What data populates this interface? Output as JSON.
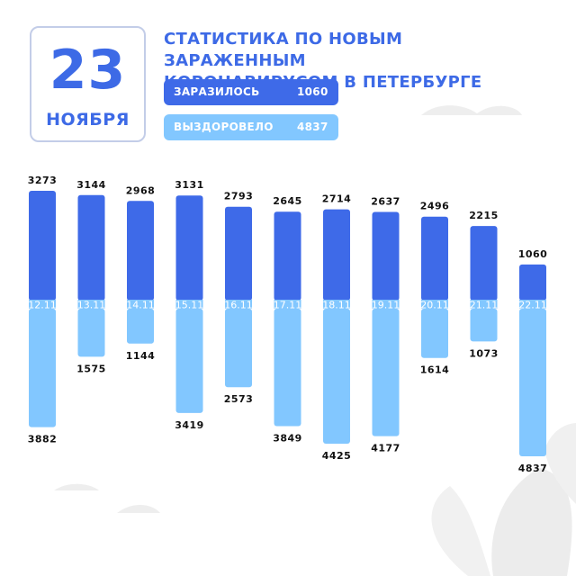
{
  "header": {
    "day": "23",
    "month": "НОЯБРЯ",
    "title_line1": "СТАТИСТИКА ПО НОВЫМ ЗАРАЖЕННЫМ",
    "title_line2": "КОРОНАВИРУСОМ В ПЕТЕРБУРГЕ"
  },
  "summary": {
    "infected_label": "ЗАРАЗИЛОСЬ",
    "infected_value": "1060",
    "recovered_label": "ВЫЗДОРОВЕЛО",
    "recovered_value": "4837"
  },
  "colors": {
    "infected": "#3e6ae8",
    "recovered": "#82c7ff",
    "accent_text": "#3d6ae6"
  },
  "chart_data": {
    "type": "bar",
    "categories": [
      "12.11",
      "13.11",
      "14.11",
      "15.11",
      "16.11",
      "17.11",
      "18.11",
      "19.11",
      "20.11",
      "21.11",
      "22.11"
    ],
    "series": [
      {
        "name": "ЗАРАЗИЛОСЬ",
        "values": [
          3273,
          3144,
          2968,
          3131,
          2793,
          2645,
          2714,
          2637,
          2496,
          2215,
          1060
        ]
      },
      {
        "name": "ВЫЗДОРОВЕЛО",
        "values": [
          3882,
          1575,
          1144,
          3419,
          2573,
          3849,
          4425,
          4177,
          1614,
          1073,
          4837
        ]
      }
    ],
    "title": "",
    "xlabel": "",
    "ylabel": "",
    "grid": false,
    "legend": "none"
  }
}
